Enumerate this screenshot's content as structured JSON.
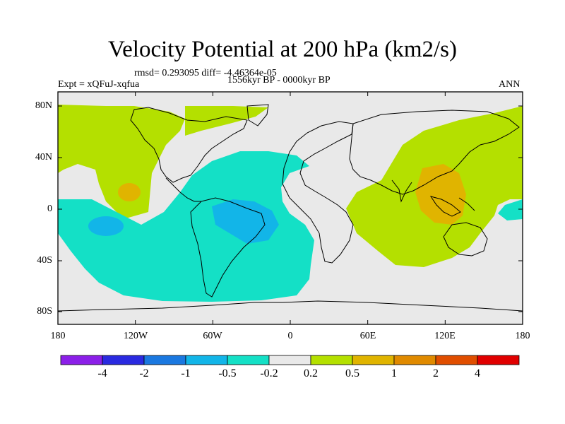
{
  "title": "Velocity Potential at 200 hPa (km2/s)",
  "stats": "rmsd= 0.293095 diff= -4.46364e-05",
  "experiment": "Expt = xQFuJ-xqfua",
  "period": "1556kyr BP - 0000kyr BP",
  "season": "ANN",
  "lon_ticks": [
    "180",
    "120W",
    "60W",
    "0",
    "60E",
    "120E",
    "180"
  ],
  "lat_ticks": [
    "80N",
    "40N",
    "0",
    "40S",
    "80S"
  ],
  "colorbar": {
    "colors": [
      "#8b1fe8",
      "#2a2ae0",
      "#1a78e0",
      "#12b5e8",
      "#14e0c6",
      "#e9e9e9",
      "#b4e000",
      "#e0b400",
      "#e08a00",
      "#e04e00",
      "#e00000"
    ],
    "labels": [
      "-4",
      "-2",
      "-1",
      "-0.5",
      "-0.2",
      "0.2",
      "0.5",
      "1",
      "2",
      "4"
    ]
  },
  "colors": {
    "neutral": "#e9e9e9",
    "pos_light": "#b4e000",
    "pos_mid": "#e0b400",
    "neg_light": "#14e0c6",
    "neg_mid": "#12b5e8"
  }
}
